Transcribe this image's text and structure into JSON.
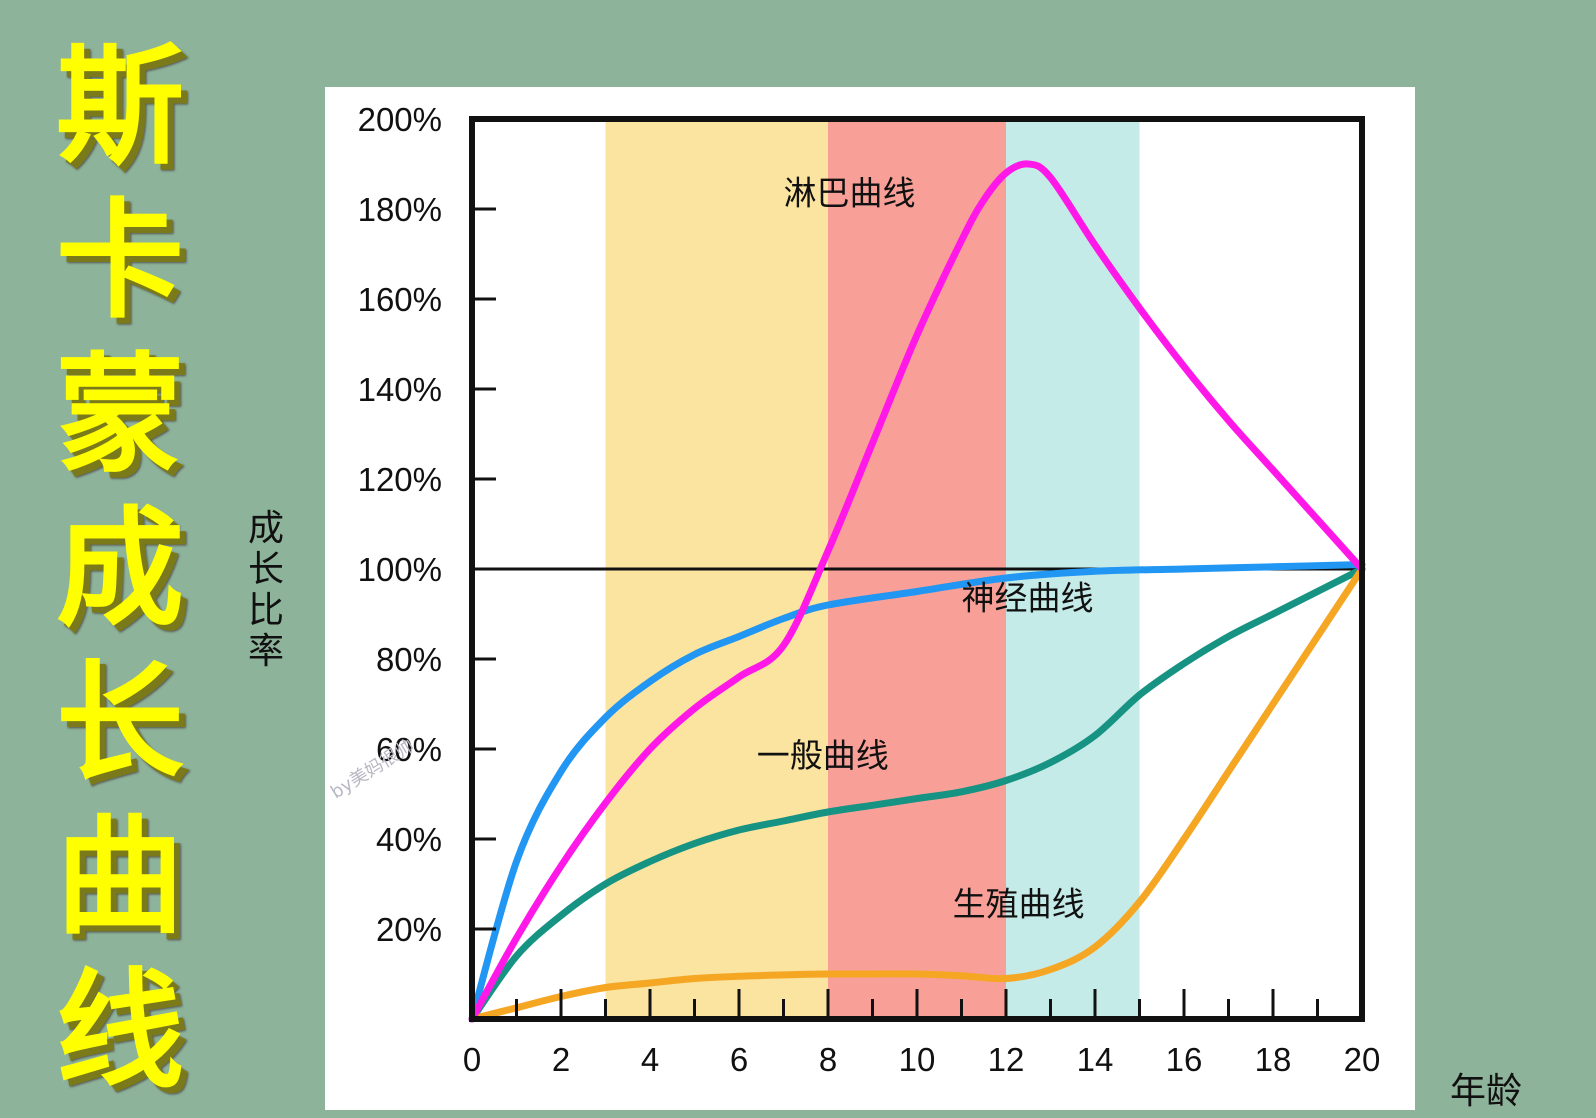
{
  "side_title": [
    "斯",
    "卡",
    "蒙",
    "成",
    "长",
    "曲",
    "线"
  ],
  "watermark": "by美妈很帅",
  "colors": {
    "background": "#8db39a",
    "title_text": "#ffff00",
    "lymph": "#ff18e8",
    "neural": "#2196f3",
    "general": "#169382",
    "reproductive": "#f5a623",
    "band_yellow": "#fbe3a0",
    "band_red": "#f8a098",
    "band_teal": "#c5ebe8"
  },
  "chart_data": {
    "type": "line",
    "xlabel": "年龄",
    "ylabel": "成长比率",
    "xlim": [
      0,
      20
    ],
    "ylim": [
      0,
      200
    ],
    "x_ticks": [
      "0",
      "2",
      "4",
      "6",
      "8",
      "10",
      "12",
      "14",
      "16",
      "18",
      "20"
    ],
    "y_ticks": [
      "20%",
      "40%",
      "60%",
      "80%",
      "100%",
      "120%",
      "140%",
      "160%",
      "180%",
      "200%"
    ],
    "reference_line": 100,
    "bands": [
      {
        "from": 3,
        "to": 8,
        "color": "#fbe3a0"
      },
      {
        "from": 8,
        "to": 12,
        "color": "#f8a098"
      },
      {
        "from": 12,
        "to": 15,
        "color": "#c5ebe8"
      }
    ],
    "series": [
      {
        "name": "淋巴曲线",
        "color": "#ff18e8",
        "x": [
          0,
          1,
          2,
          3,
          4,
          5,
          6,
          7,
          8,
          9,
          10,
          11,
          11.5,
          12,
          12.5,
          13,
          14,
          15,
          16,
          17,
          18,
          19,
          20
        ],
        "y": [
          0,
          18,
          34,
          48,
          60,
          69,
          76,
          83,
          104,
          128,
          152,
          173,
          182,
          188,
          190,
          187,
          172,
          158,
          145,
          133,
          122,
          111,
          100
        ]
      },
      {
        "name": "神经曲线",
        "color": "#2196f3",
        "x": [
          0,
          1,
          2,
          3,
          4,
          5,
          6,
          7,
          8,
          10,
          12,
          14,
          16,
          18,
          20
        ],
        "y": [
          0,
          35,
          55,
          67,
          75,
          81,
          85,
          89,
          92,
          95,
          98,
          99.5,
          100,
          100.5,
          101
        ]
      },
      {
        "name": "一般曲线",
        "color": "#169382",
        "x": [
          0,
          1,
          2,
          3,
          4,
          5,
          6,
          7,
          8,
          9,
          10,
          11,
          12,
          13,
          14,
          15,
          16,
          17,
          18,
          19,
          20
        ],
        "y": [
          0,
          14,
          23,
          30,
          35,
          39,
          42,
          44,
          46,
          47.5,
          49,
          50.5,
          53,
          57,
          63,
          72,
          79,
          85,
          90,
          95,
          100
        ]
      },
      {
        "name": "生殖曲线",
        "color": "#f5a623",
        "x": [
          0,
          1,
          2,
          3,
          4,
          5,
          6,
          7,
          8,
          9,
          10,
          11,
          12,
          13,
          14,
          15,
          16,
          17,
          18,
          19,
          20
        ],
        "y": [
          0,
          2.5,
          5,
          7,
          8,
          9,
          9.5,
          9.8,
          10,
          10,
          10,
          9.6,
          9,
          11,
          16,
          26,
          40,
          55,
          70,
          85,
          100
        ]
      }
    ],
    "annotations": [
      {
        "text": "淋巴曲线",
        "x": 7.0,
        "y": 181
      },
      {
        "text": "神经曲线",
        "x": 11.0,
        "y": 91
      },
      {
        "text": "一般曲线",
        "x": 6.4,
        "y": 56
      },
      {
        "text": "生殖曲线",
        "x": 10.8,
        "y": 23
      }
    ]
  }
}
